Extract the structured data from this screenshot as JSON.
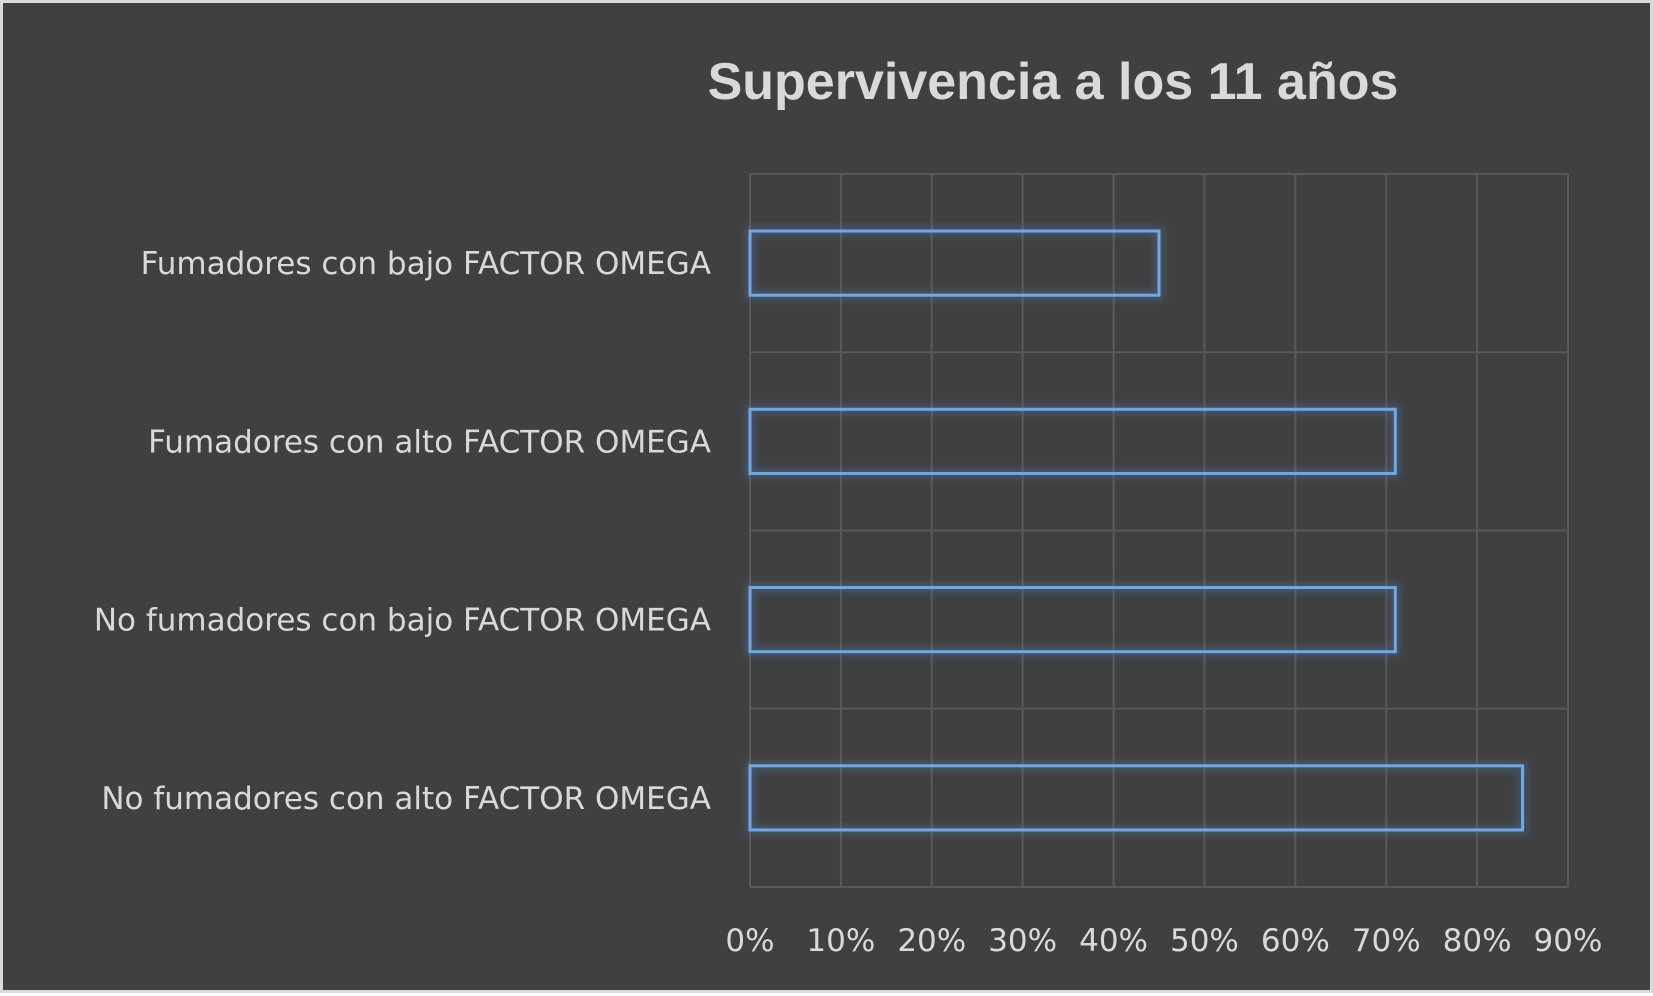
{
  "chart_data": {
    "type": "bar",
    "orientation": "horizontal",
    "title": "Supervivencia a los 11 años",
    "categories": [
      "Fumadores con bajo FACTOR OMEGA",
      "Fumadores con alto FACTOR OMEGA",
      "No fumadores con bajo FACTOR OMEGA",
      "No fumadores con alto FACTOR OMEGA"
    ],
    "values": [
      45,
      71,
      71,
      85
    ],
    "xlim": [
      0,
      90
    ],
    "x_ticks": [
      "0%",
      "10%",
      "20%",
      "30%",
      "40%",
      "50%",
      "60%",
      "70%",
      "80%",
      "90%"
    ],
    "xlabel": "",
    "ylabel": "",
    "grid": true,
    "legend": "none",
    "colors": {
      "background": "#404040",
      "bar_outline": "#6fa8e8",
      "text": "#d9d9d9",
      "grid": "#595959"
    }
  }
}
